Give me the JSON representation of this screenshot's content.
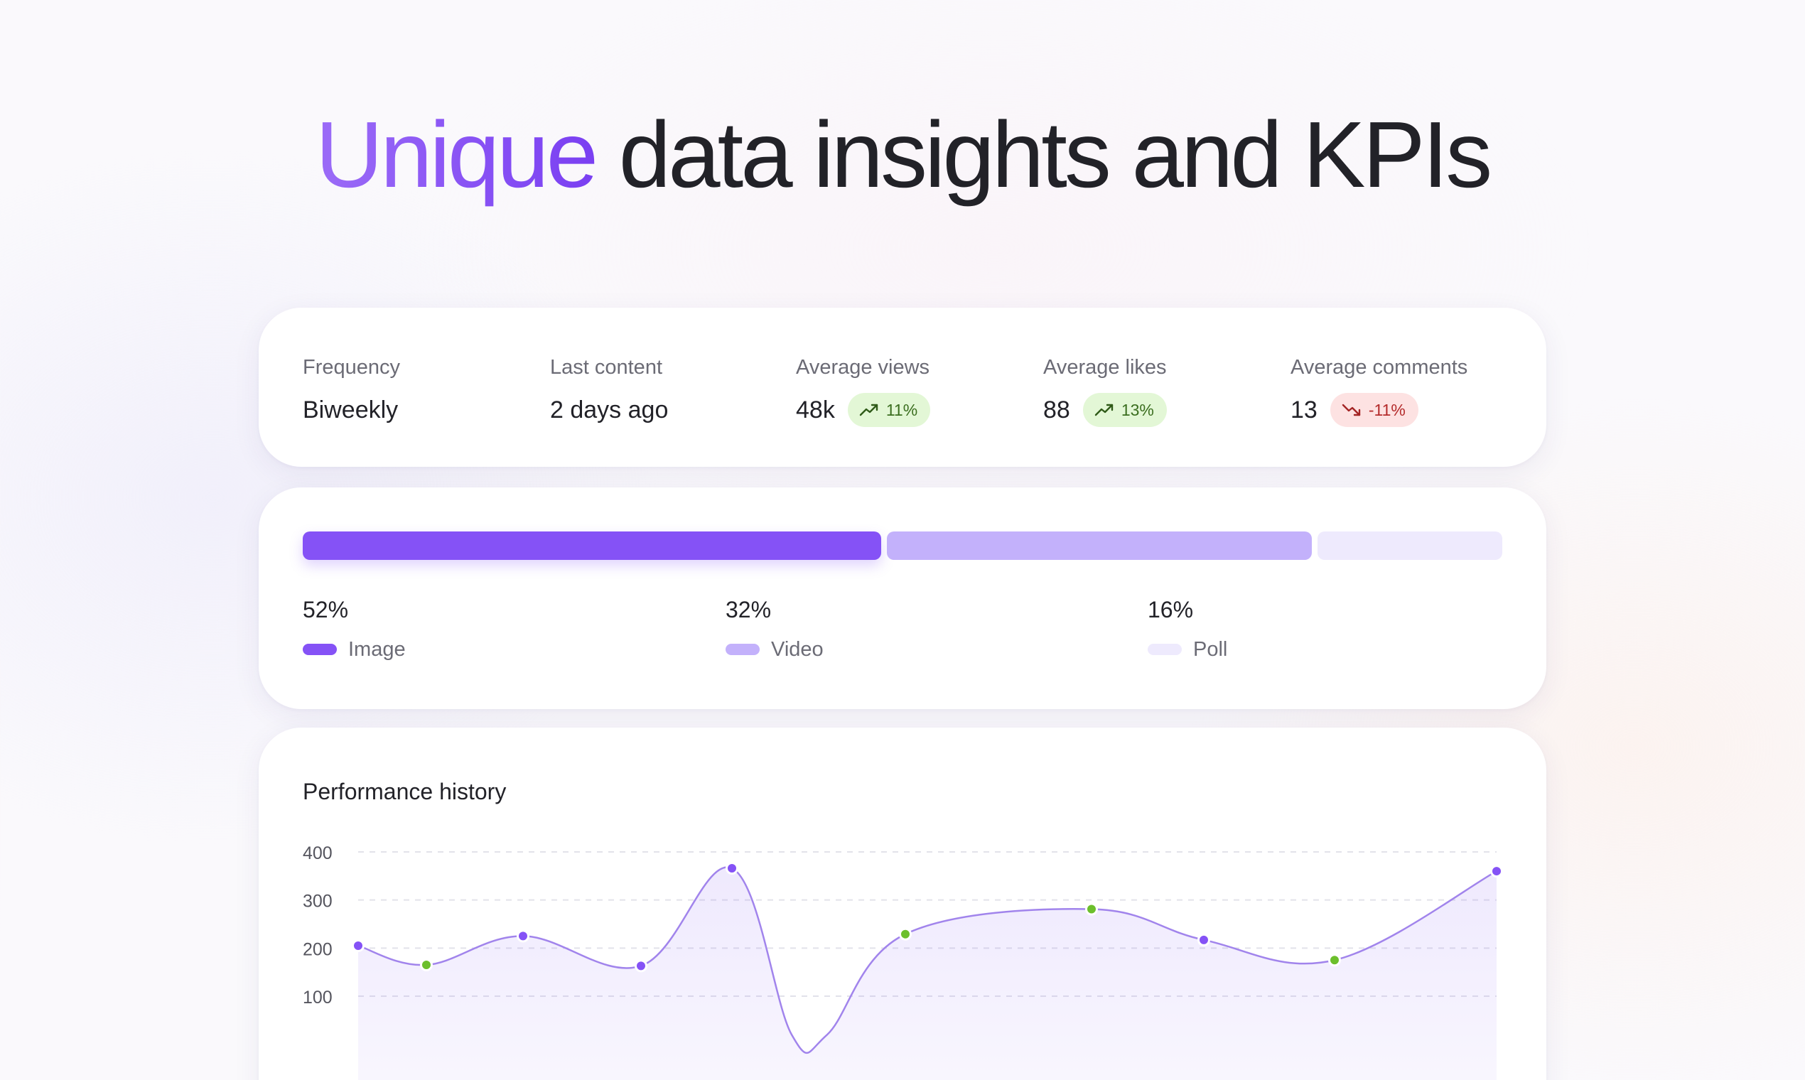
{
  "headline": {
    "accent": "Unique",
    "rest": " data insights and KPIs"
  },
  "stats": [
    {
      "label": "Frequency",
      "value": "Biweekly"
    },
    {
      "label": "Last content",
      "value": "2 days ago"
    },
    {
      "label": "Average views",
      "value": "48k",
      "change": "11%",
      "trend": "up",
      "icon": "trend-up-icon"
    },
    {
      "label": "Average likes",
      "value": "88",
      "change": "13%",
      "trend": "up",
      "icon": "trend-up-icon"
    },
    {
      "label": "Average comments",
      "value": "13",
      "change": "-11%",
      "trend": "down",
      "icon": "trend-down-icon"
    }
  ],
  "content_mix": [
    {
      "name": "Image",
      "percent": 52,
      "label": "52%",
      "color": "#8552f6"
    },
    {
      "name": "Video",
      "percent": 32,
      "label": "32%",
      "color": "#c3b1fb"
    },
    {
      "name": "Poll",
      "percent": 16,
      "label": "16%",
      "color": "#eeeafd"
    }
  ],
  "colors": {
    "accent": "#8552f6",
    "positive_dot": "#6cbf2c",
    "positive_bg": "#e3f7d6",
    "negative_bg": "#fde2e2"
  },
  "performance": {
    "title": "Performance history",
    "chart_data": {
      "type": "area",
      "title": "Performance history",
      "xlabel": "",
      "ylabel": "",
      "y_ticks": [
        400,
        300,
        200,
        100
      ],
      "ylim": [
        100,
        400
      ],
      "grid": true,
      "series": [
        {
          "values": [
            205,
            165,
            225,
            163,
            366,
            20,
            20,
            229,
            281,
            217,
            175,
            360
          ],
          "point_colors": [
            "#8552f6",
            "#6cbf2c",
            "#8552f6",
            "#8552f6",
            "#8552f6",
            null,
            null,
            "#6cbf2c",
            "#6cbf2c",
            "#8552f6",
            "#6cbf2c",
            "#8552f6"
          ]
        }
      ]
    }
  }
}
